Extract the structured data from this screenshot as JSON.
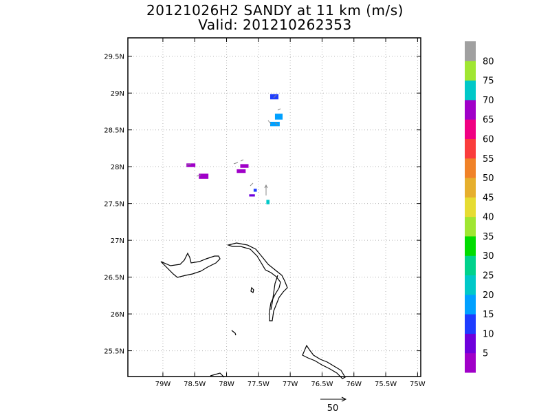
{
  "title": "20121026H2 SANDY at 11 km (m/s)",
  "subtitle": "Valid: 201210262353",
  "lat_labels": [
    "29.5N",
    "29N",
    "28.5N",
    "28N",
    "27.5N",
    "27N",
    "26.5N",
    "26N",
    "25.5N"
  ],
  "lon_labels": [
    "79W",
    "78.5W",
    "78W",
    "77.5W",
    "77W",
    "76.5W",
    "76W",
    "75.5W",
    "75W"
  ],
  "colorbar": {
    "labels": [
      "5",
      "10",
      "15",
      "20",
      "25",
      "30",
      "35",
      "40",
      "45",
      "50",
      "55",
      "60",
      "65",
      "70",
      "75",
      "80"
    ],
    "colors": [
      "#a000c8",
      "#6e00dc",
      "#1e3cff",
      "#00a0ff",
      "#00c8c8",
      "#00d28c",
      "#00dc00",
      "#a0e632",
      "#e6dc32",
      "#e6af2d",
      "#f08228",
      "#fa3c3c",
      "#f00082",
      "#a000c8",
      "#00c8c8",
      "#a0e632",
      "#a0a0a0"
    ]
  },
  "wind_cells": [
    {
      "lat": 28.95,
      "lon": -77.25,
      "w": 0.13,
      "h": 0.07,
      "color": "#1e3cff"
    },
    {
      "lat": 28.68,
      "lon": -77.18,
      "w": 0.12,
      "h": 0.08,
      "color": "#00a0ff"
    },
    {
      "lat": 28.58,
      "lon": -77.24,
      "w": 0.15,
      "h": 0.06,
      "color": "#00a0ff"
    },
    {
      "lat": 28.02,
      "lon": -78.56,
      "w": 0.14,
      "h": 0.05,
      "color": "#a000c8"
    },
    {
      "lat": 27.87,
      "lon": -78.36,
      "w": 0.15,
      "h": 0.07,
      "color": "#a000c8"
    },
    {
      "lat": 28.01,
      "lon": -77.72,
      "w": 0.13,
      "h": 0.05,
      "color": "#a000c8"
    },
    {
      "lat": 27.94,
      "lon": -77.77,
      "w": 0.14,
      "h": 0.05,
      "color": "#a000c8"
    },
    {
      "lat": 27.68,
      "lon": -77.55,
      "w": 0.05,
      "h": 0.04,
      "color": "#1e3cff"
    },
    {
      "lat": 27.61,
      "lon": -77.6,
      "w": 0.09,
      "h": 0.03,
      "color": "#6e00dc"
    },
    {
      "lat": 27.52,
      "lon": -77.35,
      "w": 0.05,
      "h": 0.06,
      "color": "#00c8c8"
    }
  ],
  "reference_vector": {
    "label": "50"
  },
  "lon_range": [
    -79.55,
    -74.95
  ],
  "lat_range": [
    25.15,
    29.75
  ]
}
